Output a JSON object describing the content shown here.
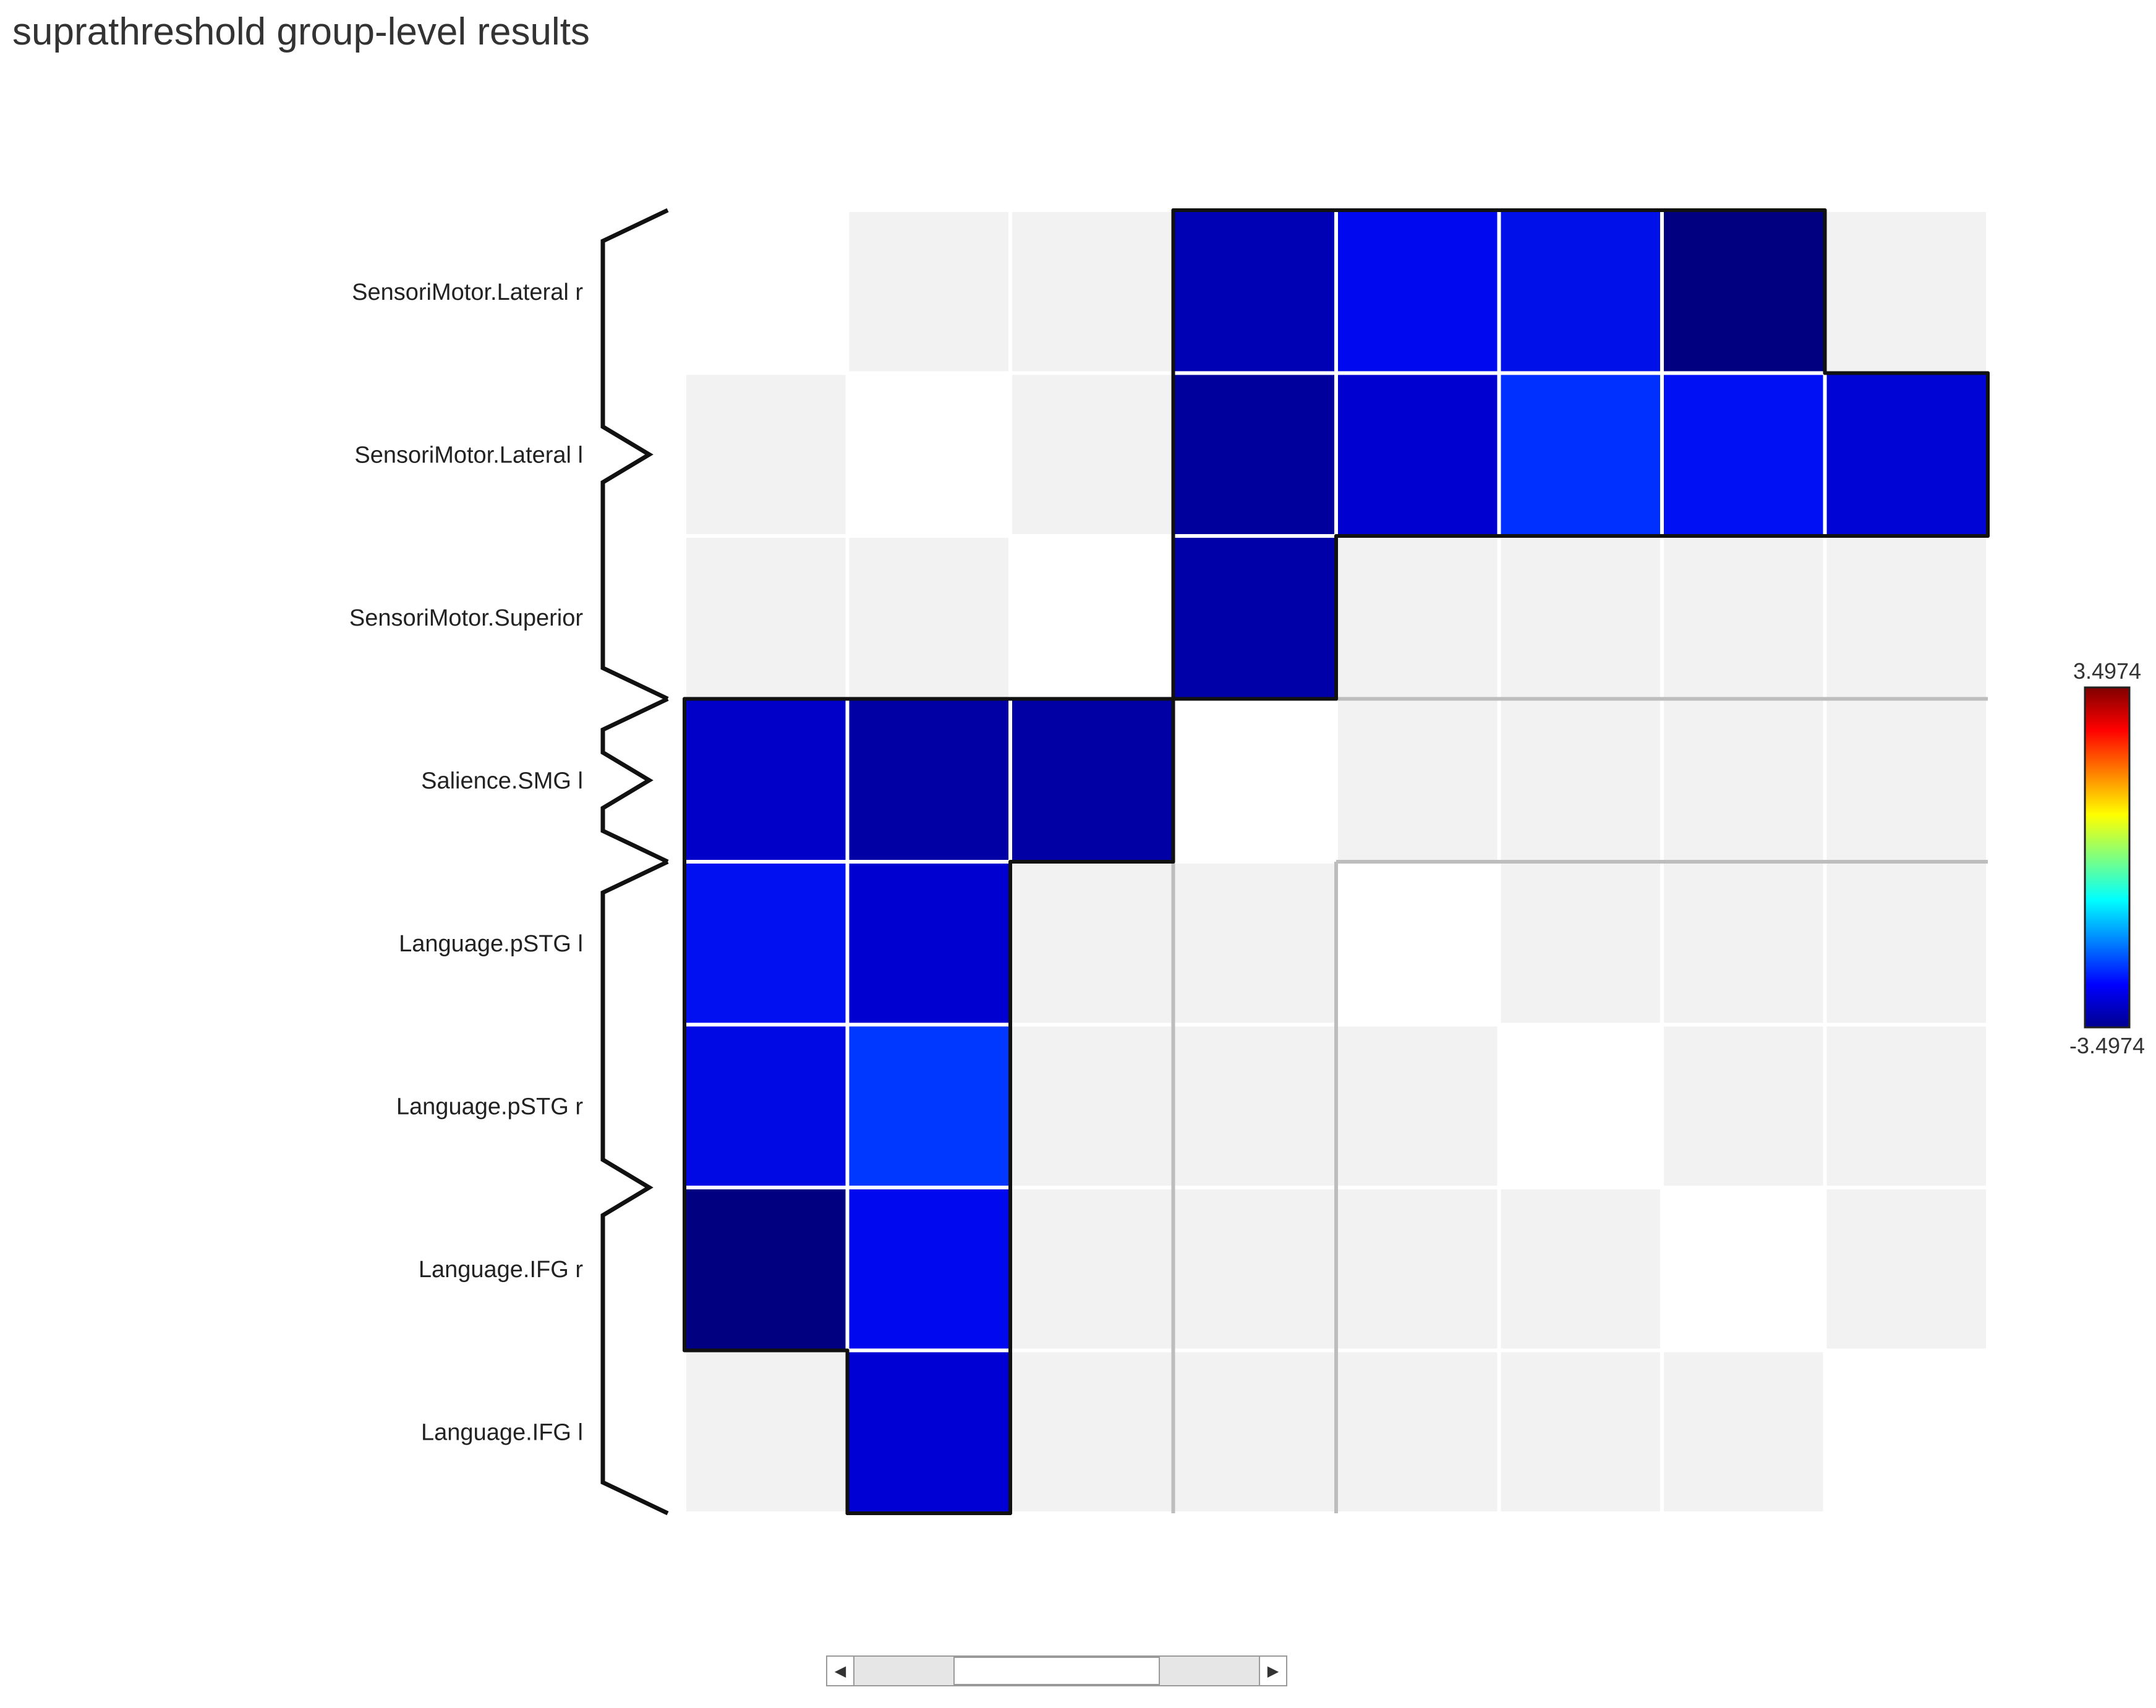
{
  "window": {
    "title": "suprathreshold group-level results"
  },
  "matrix": {
    "rois": [
      "SensoriMotor.Lateral r",
      "SensoriMotor.Lateral l",
      "SensoriMotor.Superior",
      "Salience.SMG l",
      "Language.pSTG l",
      "Language.pSTG r",
      "Language.IFG r",
      "Language.IFG l"
    ],
    "groups": [
      {
        "rows": [
          0,
          2
        ]
      },
      {
        "rows": [
          3,
          3
        ]
      },
      {
        "rows": [
          4,
          7
        ]
      }
    ],
    "significant_cells": [
      {
        "row": 0,
        "col": 3,
        "color": "#0000b4"
      },
      {
        "row": 0,
        "col": 4,
        "color": "#0008f0"
      },
      {
        "row": 0,
        "col": 5,
        "color": "#0010e8"
      },
      {
        "row": 0,
        "col": 6,
        "color": "#000080"
      },
      {
        "row": 1,
        "col": 3,
        "color": "#00009c"
      },
      {
        "row": 1,
        "col": 4,
        "color": "#0000d0"
      },
      {
        "row": 1,
        "col": 5,
        "color": "#0030ff"
      },
      {
        "row": 1,
        "col": 6,
        "color": "#0010f4"
      },
      {
        "row": 1,
        "col": 7,
        "color": "#0004d4"
      },
      {
        "row": 2,
        "col": 3,
        "color": "#0000a8"
      },
      {
        "row": 3,
        "col": 0,
        "color": "#0000c8"
      },
      {
        "row": 3,
        "col": 1,
        "color": "#0000a4"
      },
      {
        "row": 3,
        "col": 2,
        "color": "#0000a4"
      },
      {
        "row": 4,
        "col": 0,
        "color": "#0010f0"
      },
      {
        "row": 4,
        "col": 1,
        "color": "#0000d0"
      },
      {
        "row": 5,
        "col": 0,
        "color": "#0008e4"
      },
      {
        "row": 5,
        "col": 1,
        "color": "#0038ff"
      },
      {
        "row": 6,
        "col": 0,
        "color": "#000080"
      },
      {
        "row": 6,
        "col": 1,
        "color": "#0008f0"
      },
      {
        "row": 7,
        "col": 1,
        "color": "#0000d4"
      }
    ],
    "background_cell_color": "#f2f2f2",
    "diagonal_cell_color": "#ffffff",
    "missing_cells": [
      {
        "row": 0,
        "col": 0
      },
      {
        "row": 7,
        "col": 7
      }
    ]
  },
  "colorbar": {
    "max_label": "3.4974",
    "min_label": "-3.4974",
    "colormap": "jet"
  },
  "scrollbar": {
    "position": 0.5
  }
}
